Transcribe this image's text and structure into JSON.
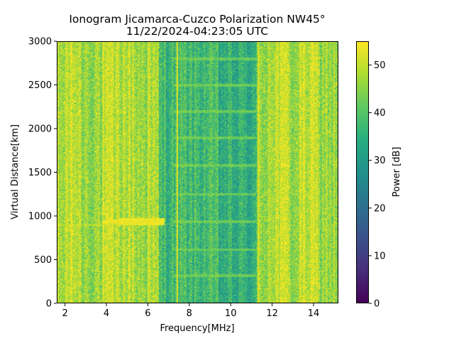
{
  "chart_data": {
    "type": "heatmap",
    "title": "Ionogram Jicamarca-Cuzco Polarization NW45°",
    "subtitle": "11/22/2024-04:23:05 UTC",
    "xlabel": "Frequency[MHz]",
    "ylabel": "Virtual Distance[km]",
    "xlim": [
      1.6,
      15.2
    ],
    "ylim": [
      0,
      3000
    ],
    "x_ticks": [
      2,
      4,
      6,
      8,
      10,
      12,
      14
    ],
    "x_tick_labels": [
      "2",
      "4",
      "6",
      "8",
      "10",
      "12",
      "14"
    ],
    "y_ticks": [
      0,
      500,
      1000,
      1500,
      2000,
      2500,
      3000
    ],
    "y_tick_labels": [
      "0",
      "500",
      "1000",
      "1500",
      "2000",
      "2500",
      "3000"
    ],
    "colorbar": {
      "label": "Power [dB]",
      "range": [
        0,
        55
      ],
      "ticks": [
        0,
        10,
        20,
        30,
        40,
        50
      ],
      "tick_labels": [
        "0",
        "10",
        "20",
        "30",
        "40",
        "50"
      ],
      "colormap": "viridis"
    },
    "features": [
      {
        "description": "strong echo trace",
        "freq_range_mhz": [
          3.8,
          6.8
        ],
        "distance_km": 940,
        "power_db": 55
      },
      {
        "description": "periodic range bands",
        "freq_range_mhz": [
          7.2,
          11.2
        ],
        "distances_km": [
          320,
          620,
          940,
          1250,
          1580,
          1900,
          2200,
          2500,
          2800
        ],
        "power_db": 42
      },
      {
        "description": "weaker region",
        "freq_range_mhz": [
          6.5,
          11.3
        ],
        "power_db": 33
      },
      {
        "description": "bright vertical line",
        "freq_mhz": 7.4,
        "power_db": 54
      }
    ]
  }
}
